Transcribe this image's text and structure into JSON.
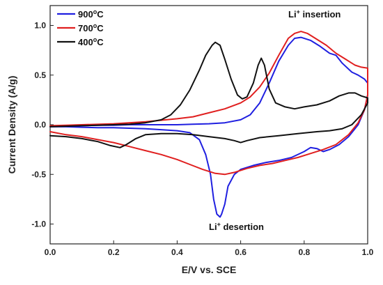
{
  "chart_data": {
    "type": "line",
    "title": "",
    "xlabel": "E/V vs. SCE",
    "ylabel": "Current Density (A/g)",
    "xlim": [
      0.0,
      1.0
    ],
    "ylim": [
      -1.2,
      1.2
    ],
    "xticks": [
      "0.0",
      "0.2",
      "0.4",
      "0.6",
      "0.8",
      "1.0"
    ],
    "xtick_values": [
      0.0,
      0.2,
      0.4,
      0.6,
      0.8,
      1.0
    ],
    "yticks": [
      "-1.0",
      "-0.5",
      "0.0",
      "0.5",
      "1.0"
    ],
    "ytick_values": [
      -1.0,
      -0.5,
      0.0,
      0.5,
      1.0
    ],
    "legend_position": "top-left",
    "grid": false,
    "annotations": {
      "insertion": {
        "pre": "Li",
        "sup": "+",
        "post": " insertion",
        "x": 0.75,
        "y": 1.08
      },
      "desertion": {
        "pre": "Li",
        "sup": "+",
        "post": " desertion",
        "x": 0.5,
        "y": -1.06
      }
    },
    "series": [
      {
        "name_main": "900",
        "name_deg": "o",
        "name_unit": "C",
        "color": "#1f1fe0",
        "points": [
          [
            0.0,
            -0.02
          ],
          [
            0.05,
            -0.01
          ],
          [
            0.1,
            -0.01
          ],
          [
            0.15,
            -0.005
          ],
          [
            0.2,
            -0.005
          ],
          [
            0.25,
            0.0
          ],
          [
            0.3,
            0.0
          ],
          [
            0.35,
            0.0
          ],
          [
            0.4,
            0.0
          ],
          [
            0.45,
            0.005
          ],
          [
            0.5,
            0.01
          ],
          [
            0.55,
            0.02
          ],
          [
            0.6,
            0.05
          ],
          [
            0.63,
            0.1
          ],
          [
            0.66,
            0.22
          ],
          [
            0.69,
            0.42
          ],
          [
            0.72,
            0.64
          ],
          [
            0.75,
            0.8
          ],
          [
            0.77,
            0.87
          ],
          [
            0.79,
            0.88
          ],
          [
            0.82,
            0.85
          ],
          [
            0.85,
            0.79
          ],
          [
            0.88,
            0.72
          ],
          [
            0.9,
            0.7
          ],
          [
            0.92,
            0.62
          ],
          [
            0.95,
            0.53
          ],
          [
            0.97,
            0.5
          ],
          [
            0.99,
            0.46
          ],
          [
            1.0,
            0.42
          ],
          [
            1.0,
            0.3
          ],
          [
            0.99,
            0.15
          ],
          [
            0.97,
            0.0
          ],
          [
            0.94,
            -0.12
          ],
          [
            0.91,
            -0.2
          ],
          [
            0.88,
            -0.25
          ],
          [
            0.86,
            -0.27
          ],
          [
            0.84,
            -0.24
          ],
          [
            0.82,
            -0.23
          ],
          [
            0.8,
            -0.27
          ],
          [
            0.76,
            -0.33
          ],
          [
            0.72,
            -0.36
          ],
          [
            0.68,
            -0.38
          ],
          [
            0.64,
            -0.41
          ],
          [
            0.6,
            -0.45
          ],
          [
            0.58,
            -0.5
          ],
          [
            0.56,
            -0.62
          ],
          [
            0.55,
            -0.8
          ],
          [
            0.54,
            -0.9
          ],
          [
            0.535,
            -0.93
          ],
          [
            0.525,
            -0.9
          ],
          [
            0.515,
            -0.75
          ],
          [
            0.505,
            -0.5
          ],
          [
            0.49,
            -0.3
          ],
          [
            0.47,
            -0.15
          ],
          [
            0.44,
            -0.08
          ],
          [
            0.4,
            -0.06
          ],
          [
            0.35,
            -0.05
          ],
          [
            0.3,
            -0.04
          ],
          [
            0.25,
            -0.035
          ],
          [
            0.2,
            -0.03
          ],
          [
            0.15,
            -0.03
          ],
          [
            0.1,
            -0.025
          ],
          [
            0.05,
            -0.02
          ],
          [
            0.0,
            -0.02
          ]
        ]
      },
      {
        "name_main": "700",
        "name_deg": "o",
        "name_unit": "C",
        "color": "#e01f1f",
        "points": [
          [
            0.0,
            -0.01
          ],
          [
            0.05,
            -0.005
          ],
          [
            0.1,
            0.0
          ],
          [
            0.2,
            0.01
          ],
          [
            0.3,
            0.03
          ],
          [
            0.4,
            0.06
          ],
          [
            0.45,
            0.08
          ],
          [
            0.5,
            0.12
          ],
          [
            0.55,
            0.16
          ],
          [
            0.6,
            0.22
          ],
          [
            0.63,
            0.28
          ],
          [
            0.66,
            0.38
          ],
          [
            0.69,
            0.52
          ],
          [
            0.72,
            0.7
          ],
          [
            0.75,
            0.87
          ],
          [
            0.77,
            0.92
          ],
          [
            0.79,
            0.94
          ],
          [
            0.81,
            0.92
          ],
          [
            0.84,
            0.86
          ],
          [
            0.87,
            0.8
          ],
          [
            0.9,
            0.72
          ],
          [
            0.93,
            0.66
          ],
          [
            0.96,
            0.6
          ],
          [
            0.98,
            0.58
          ],
          [
            1.0,
            0.57
          ],
          [
            1.0,
            0.3
          ],
          [
            0.99,
            0.15
          ],
          [
            0.97,
            0.02
          ],
          [
            0.94,
            -0.1
          ],
          [
            0.9,
            -0.2
          ],
          [
            0.86,
            -0.25
          ],
          [
            0.82,
            -0.29
          ],
          [
            0.78,
            -0.33
          ],
          [
            0.74,
            -0.36
          ],
          [
            0.7,
            -0.39
          ],
          [
            0.66,
            -0.41
          ],
          [
            0.62,
            -0.44
          ],
          [
            0.58,
            -0.48
          ],
          [
            0.55,
            -0.5
          ],
          [
            0.52,
            -0.49
          ],
          [
            0.48,
            -0.45
          ],
          [
            0.44,
            -0.4
          ],
          [
            0.4,
            -0.35
          ],
          [
            0.35,
            -0.3
          ],
          [
            0.3,
            -0.26
          ],
          [
            0.25,
            -0.22
          ],
          [
            0.2,
            -0.18
          ],
          [
            0.15,
            -0.15
          ],
          [
            0.1,
            -0.12
          ],
          [
            0.05,
            -0.1
          ],
          [
            0.0,
            -0.07
          ]
        ]
      },
      {
        "name_main": "400",
        "name_deg": "o",
        "name_unit": "C",
        "color": "#111111",
        "points": [
          [
            0.0,
            -0.02
          ],
          [
            0.05,
            -0.015
          ],
          [
            0.1,
            -0.01
          ],
          [
            0.15,
            -0.005
          ],
          [
            0.2,
            0.0
          ],
          [
            0.25,
            0.005
          ],
          [
            0.3,
            0.02
          ],
          [
            0.35,
            0.05
          ],
          [
            0.38,
            0.1
          ],
          [
            0.41,
            0.2
          ],
          [
            0.44,
            0.35
          ],
          [
            0.47,
            0.55
          ],
          [
            0.49,
            0.7
          ],
          [
            0.51,
            0.8
          ],
          [
            0.52,
            0.83
          ],
          [
            0.535,
            0.8
          ],
          [
            0.55,
            0.66
          ],
          [
            0.57,
            0.46
          ],
          [
            0.59,
            0.3
          ],
          [
            0.605,
            0.26
          ],
          [
            0.62,
            0.28
          ],
          [
            0.64,
            0.42
          ],
          [
            0.655,
            0.6
          ],
          [
            0.665,
            0.67
          ],
          [
            0.675,
            0.6
          ],
          [
            0.69,
            0.36
          ],
          [
            0.71,
            0.22
          ],
          [
            0.74,
            0.18
          ],
          [
            0.77,
            0.16
          ],
          [
            0.8,
            0.18
          ],
          [
            0.84,
            0.2
          ],
          [
            0.88,
            0.24
          ],
          [
            0.91,
            0.29
          ],
          [
            0.94,
            0.32
          ],
          [
            0.96,
            0.32
          ],
          [
            0.98,
            0.29
          ],
          [
            1.0,
            0.27
          ],
          [
            1.0,
            0.22
          ],
          [
            0.98,
            0.1
          ],
          [
            0.95,
            0.0
          ],
          [
            0.92,
            -0.04
          ],
          [
            0.88,
            -0.06
          ],
          [
            0.84,
            -0.07
          ],
          [
            0.78,
            -0.09
          ],
          [
            0.72,
            -0.11
          ],
          [
            0.66,
            -0.13
          ],
          [
            0.62,
            -0.16
          ],
          [
            0.6,
            -0.18
          ],
          [
            0.58,
            -0.16
          ],
          [
            0.55,
            -0.14
          ],
          [
            0.5,
            -0.12
          ],
          [
            0.45,
            -0.1
          ],
          [
            0.4,
            -0.09
          ],
          [
            0.35,
            -0.09
          ],
          [
            0.3,
            -0.1
          ],
          [
            0.27,
            -0.14
          ],
          [
            0.24,
            -0.2
          ],
          [
            0.22,
            -0.23
          ],
          [
            0.19,
            -0.21
          ],
          [
            0.15,
            -0.17
          ],
          [
            0.1,
            -0.14
          ],
          [
            0.05,
            -0.12
          ],
          [
            0.0,
            -0.11
          ]
        ]
      }
    ]
  }
}
